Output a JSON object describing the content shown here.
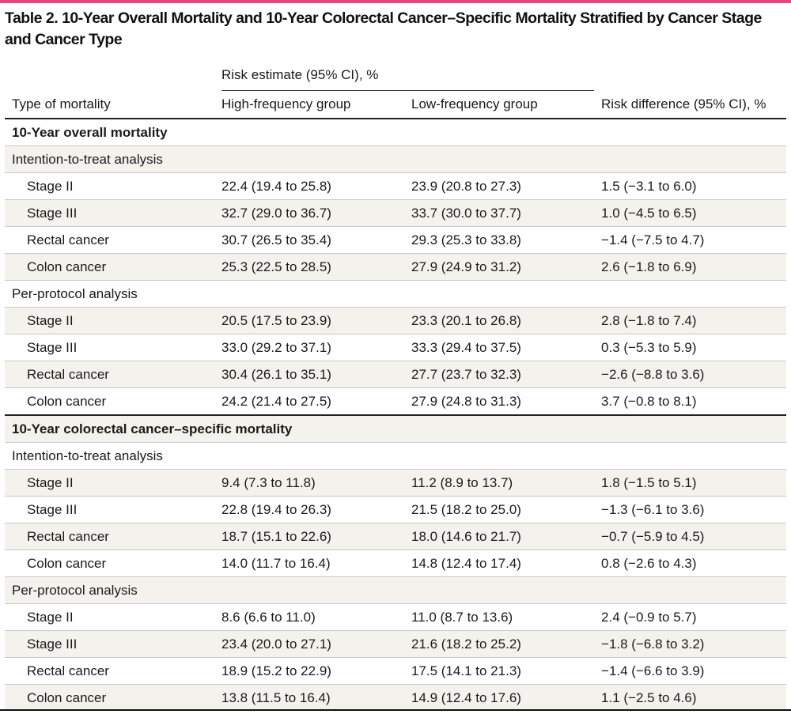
{
  "title": "Table 2. 10-Year Overall Mortality and 10-Year Colorectal Cancer–Specific Mortality Stratified by Cancer Stage and Cancer Type",
  "header": {
    "spanner": "Risk estimate (95% CI), %",
    "col1": "Type of mortality",
    "col2": "High-frequency group",
    "col3": "Low-frequency group",
    "col4": "Risk difference (95% CI), %"
  },
  "rows": [
    {
      "label": "10-Year overall mortality"
    },
    {
      "label": "Intention-to-treat analysis"
    },
    {
      "label": "Stage II",
      "high": "22.4 (19.4 to 25.8)",
      "low": "23.9 (20.8 to 27.3)",
      "diff": "1.5 (−3.1 to 6.0)"
    },
    {
      "label": "Stage III",
      "high": "32.7 (29.0 to 36.7)",
      "low": "33.7 (30.0 to 37.7)",
      "diff": "1.0 (−4.5 to 6.5)"
    },
    {
      "label": "Rectal cancer",
      "high": "30.7 (26.5 to 35.4)",
      "low": "29.3 (25.3 to 33.8)",
      "diff": "−1.4 (−7.5 to 4.7)"
    },
    {
      "label": "Colon cancer",
      "high": "25.3 (22.5 to 28.5)",
      "low": "27.9 (24.9 to 31.2)",
      "diff": "2.6 (−1.8 to 6.9)"
    },
    {
      "label": "Per-protocol analysis"
    },
    {
      "label": "Stage II",
      "high": "20.5 (17.5 to 23.9)",
      "low": "23.3 (20.1 to 26.8)",
      "diff": "2.8 (−1.8 to 7.4)"
    },
    {
      "label": "Stage III",
      "high": "33.0 (29.2 to 37.1)",
      "low": "33.3 (29.4 to 37.5)",
      "diff": "0.3 (−5.3 to 5.9)"
    },
    {
      "label": "Rectal cancer",
      "high": "30.4 (26.1 to 35.1)",
      "low": "27.7 (23.7 to 32.3)",
      "diff": "−2.6 (−8.8 to 3.6)"
    },
    {
      "label": "Colon cancer",
      "high": "24.2 (21.4 to 27.5)",
      "low": "27.9 (24.8 to 31.3)",
      "diff": "3.7 (−0.8 to 8.1)"
    },
    {
      "label": "10-Year colorectal cancer–specific mortality"
    },
    {
      "label": "Intention-to-treat analysis"
    },
    {
      "label": "Stage II",
      "high": "9.4 (7.3 to 11.8)",
      "low": "11.2 (8.9 to 13.7)",
      "diff": "1.8 (−1.5 to 5.1)"
    },
    {
      "label": "Stage III",
      "high": "22.8 (19.4 to 26.3)",
      "low": "21.5 (18.2 to 25.0)",
      "diff": "−1.3 (−6.1 to 3.6)"
    },
    {
      "label": "Rectal cancer",
      "high": "18.7 (15.1 to 22.6)",
      "low": "18.0 (14.6 to 21.7)",
      "diff": "−0.7 (−5.9 to 4.5)"
    },
    {
      "label": "Colon cancer",
      "high": "14.0 (11.7 to 16.4)",
      "low": "14.8 (12.4 to 17.4)",
      "diff": "0.8 (−2.6 to 4.3)"
    },
    {
      "label": "Per-protocol analysis"
    },
    {
      "label": "Stage II",
      "high": "8.6 (6.6 to 11.0)",
      "low": "11.0 (8.7 to 13.6)",
      "diff": "2.4 (−0.9 to 5.7)"
    },
    {
      "label": "Stage III",
      "high": "23.4 (20.0 to 27.1)",
      "low": "21.6 (18.2 to 25.2)",
      "diff": "−1.8 (−6.8 to 3.2)"
    },
    {
      "label": "Rectal cancer",
      "high": "18.9 (15.2 to 22.9)",
      "low": "17.5 (14.1 to 21.3)",
      "diff": "−1.4 (−6.6 to 3.9)"
    },
    {
      "label": "Colon cancer",
      "high": "13.8 (11.5 to 16.4)",
      "low": "14.9 (12.4 to 17.6)",
      "diff": "1.1 (−2.5 to 4.6)"
    }
  ]
}
